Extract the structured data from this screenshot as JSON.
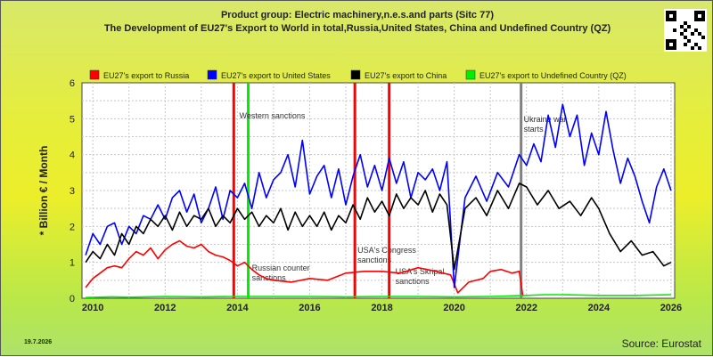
{
  "header": {
    "title_line1": "Product group: Electric machinery,n.e.s.and parts (Sitc 77)",
    "title_line2": "The Development of EU27's Export to World in total,Russia,United States, China and Undefined Country (QZ)"
  },
  "footer": {
    "date": "19.7.2026",
    "source": "Source: Eurostat"
  },
  "chart_data": {
    "type": "line",
    "ylabel": "* Billion € / Month",
    "xlim": [
      2009.7,
      2026.1
    ],
    "ylim": [
      0,
      6
    ],
    "xticks": [
      2010,
      2012,
      2014,
      2016,
      2018,
      2020,
      2022,
      2024,
      2026
    ],
    "yticks": [
      0,
      1,
      2,
      3,
      4,
      5,
      6
    ],
    "grid": true,
    "legend_position": "top",
    "series": [
      {
        "name": "EU27's export to Russia",
        "color": "#ff0000",
        "x": [
          2009.8,
          2010.0,
          2010.2,
          2010.4,
          2010.6,
          2010.8,
          2011.0,
          2011.2,
          2011.4,
          2011.6,
          2011.8,
          2012.0,
          2012.2,
          2012.4,
          2012.6,
          2012.8,
          2013.0,
          2013.2,
          2013.4,
          2013.6,
          2013.8,
          2014.0,
          2014.2,
          2014.4,
          2014.6,
          2014.8,
          2015.0,
          2015.5,
          2016.0,
          2016.5,
          2017.0,
          2017.5,
          2018.0,
          2018.5,
          2019.0,
          2019.5,
          2019.9,
          2020.1,
          2020.4,
          2020.8,
          2021.0,
          2021.3,
          2021.6,
          2021.8,
          2021.9
        ],
        "values": [
          0.3,
          0.55,
          0.7,
          0.85,
          0.9,
          0.85,
          1.1,
          1.3,
          1.2,
          1.4,
          1.1,
          1.35,
          1.5,
          1.6,
          1.45,
          1.4,
          1.5,
          1.3,
          1.2,
          1.15,
          1.05,
          0.9,
          1.0,
          0.8,
          0.65,
          0.55,
          0.5,
          0.45,
          0.55,
          0.5,
          0.7,
          0.75,
          0.75,
          0.7,
          0.85,
          0.75,
          0.65,
          0.15,
          0.45,
          0.55,
          0.75,
          0.8,
          0.7,
          0.75,
          0.05
        ]
      },
      {
        "name": "EU27's export to United States",
        "color": "#0000ff",
        "x": [
          2009.8,
          2010.0,
          2010.2,
          2010.4,
          2010.6,
          2010.8,
          2011.0,
          2011.2,
          2011.4,
          2011.6,
          2011.8,
          2012.0,
          2012.2,
          2012.4,
          2012.6,
          2012.8,
          2013.0,
          2013.2,
          2013.4,
          2013.6,
          2013.8,
          2014.0,
          2014.2,
          2014.4,
          2014.6,
          2014.8,
          2015.0,
          2015.2,
          2015.4,
          2015.6,
          2015.8,
          2016.0,
          2016.2,
          2016.4,
          2016.6,
          2016.8,
          2017.0,
          2017.2,
          2017.4,
          2017.6,
          2017.8,
          2018.0,
          2018.2,
          2018.4,
          2018.6,
          2018.8,
          2019.0,
          2019.2,
          2019.4,
          2019.6,
          2019.8,
          2020.0,
          2020.3,
          2020.6,
          2020.9,
          2021.2,
          2021.5,
          2021.8,
          2022.0,
          2022.2,
          2022.4,
          2022.6,
          2022.8,
          2023.0,
          2023.2,
          2023.4,
          2023.6,
          2023.8,
          2024.0,
          2024.2,
          2024.4,
          2024.6,
          2024.8,
          2025.0,
          2025.2,
          2025.4,
          2025.6,
          2025.8,
          2026.0
        ],
        "values": [
          1.2,
          1.8,
          1.5,
          2.0,
          2.1,
          1.5,
          2.0,
          1.8,
          2.3,
          2.2,
          2.6,
          2.2,
          2.8,
          3.0,
          2.4,
          2.9,
          2.1,
          2.5,
          3.1,
          2.2,
          3.0,
          2.8,
          3.2,
          2.5,
          3.5,
          2.8,
          3.3,
          3.5,
          4.0,
          3.1,
          4.4,
          2.9,
          3.4,
          3.7,
          2.8,
          3.6,
          2.6,
          3.4,
          4.0,
          3.1,
          3.7,
          3.0,
          3.9,
          3.2,
          3.8,
          2.8,
          3.5,
          3.3,
          3.6,
          3.0,
          3.8,
          0.3,
          2.8,
          3.4,
          2.7,
          3.5,
          3.1,
          4.0,
          3.7,
          4.3,
          3.8,
          5.1,
          4.2,
          5.4,
          4.5,
          5.1,
          3.7,
          4.6,
          4.0,
          5.2,
          4.1,
          3.2,
          3.9,
          3.4,
          2.7,
          2.1,
          3.1,
          3.6,
          3.0
        ]
      },
      {
        "name": "EU27's export to China",
        "color": "#000000",
        "x": [
          2009.8,
          2010.0,
          2010.2,
          2010.4,
          2010.6,
          2010.8,
          2011.0,
          2011.2,
          2011.4,
          2011.6,
          2011.8,
          2012.0,
          2012.2,
          2012.4,
          2012.6,
          2012.8,
          2013.0,
          2013.2,
          2013.4,
          2013.6,
          2013.8,
          2014.0,
          2014.2,
          2014.4,
          2014.6,
          2014.8,
          2015.0,
          2015.2,
          2015.4,
          2015.6,
          2015.8,
          2016.0,
          2016.2,
          2016.4,
          2016.6,
          2016.8,
          2017.0,
          2017.2,
          2017.4,
          2017.6,
          2017.8,
          2018.0,
          2018.2,
          2018.4,
          2018.6,
          2018.8,
          2019.0,
          2019.2,
          2019.4,
          2019.6,
          2019.8,
          2020.0,
          2020.3,
          2020.6,
          2020.9,
          2021.2,
          2021.5,
          2021.8,
          2022.0,
          2022.3,
          2022.6,
          2022.9,
          2023.2,
          2023.5,
          2023.8,
          2024.0,
          2024.3,
          2024.6,
          2024.9,
          2025.2,
          2025.5,
          2025.8,
          2026.0
        ],
        "values": [
          1.0,
          1.3,
          1.1,
          1.5,
          1.2,
          1.8,
          1.5,
          2.0,
          1.8,
          2.2,
          2.0,
          2.3,
          1.9,
          2.4,
          2.0,
          2.3,
          2.2,
          2.5,
          2.0,
          2.3,
          2.1,
          2.5,
          2.2,
          2.4,
          2.0,
          2.3,
          2.1,
          2.5,
          1.9,
          2.4,
          2.0,
          2.3,
          2.0,
          2.4,
          1.9,
          2.3,
          2.1,
          2.6,
          2.2,
          2.8,
          2.4,
          2.7,
          2.3,
          2.9,
          2.5,
          2.8,
          2.6,
          3.0,
          2.4,
          2.9,
          2.6,
          0.8,
          2.5,
          2.8,
          2.3,
          3.0,
          2.5,
          3.2,
          3.1,
          2.6,
          3.0,
          2.5,
          2.7,
          2.3,
          2.8,
          2.5,
          1.8,
          1.3,
          1.6,
          1.2,
          1.3,
          0.9,
          1.0
        ]
      },
      {
        "name": "EU27's export to Undefined Country (QZ)",
        "color": "#00ee00",
        "x": [
          2009.8,
          2010.5,
          2011.0,
          2012.0,
          2013.0,
          2014.0,
          2015.0,
          2016.0,
          2017.0,
          2018.0,
          2019.0,
          2020.0,
          2021.0,
          2022.0,
          2022.5,
          2023.0,
          2024.0,
          2025.0,
          2026.0
        ],
        "values": [
          0.02,
          0.04,
          0.03,
          0.05,
          0.04,
          0.05,
          0.05,
          0.05,
          0.04,
          0.05,
          0.05,
          0.04,
          0.05,
          0.08,
          0.1,
          0.1,
          0.08,
          0.08,
          0.1
        ]
      }
    ],
    "events": [
      {
        "x": 2013.9,
        "color": "#ff0000",
        "label": ""
      },
      {
        "x": 2014.3,
        "color": "#00ee00",
        "label": "Western sanctions"
      },
      {
        "x": 2017.25,
        "color": "#ff0000",
        "label": "USA's Congress sanctions"
      },
      {
        "x": 2018.2,
        "color": "#ff0000",
        "label": "USA's Skripal sanctions"
      },
      {
        "x": 2021.85,
        "color": "#808080",
        "label": "Ukraine war starts"
      },
      {
        "x": 2014.4,
        "color": "",
        "label": "Russian counter sanctions"
      }
    ]
  }
}
